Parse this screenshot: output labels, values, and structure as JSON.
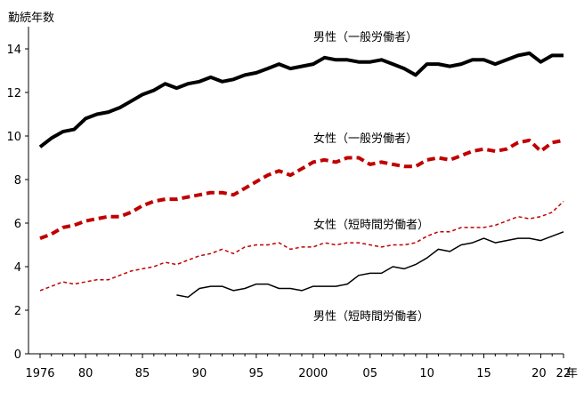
{
  "chart_data": {
    "type": "line",
    "ylabel": "勤続年数",
    "xunit": "年",
    "ylim": [
      0,
      15
    ],
    "yticks": [
      0,
      2,
      4,
      6,
      8,
      10,
      12,
      14
    ],
    "xlim": [
      1976,
      2022
    ],
    "xticks": [
      {
        "value": 1976,
        "label": "1976"
      },
      {
        "value": 1980,
        "label": "80"
      },
      {
        "value": 1985,
        "label": "85"
      },
      {
        "value": 1990,
        "label": "90"
      },
      {
        "value": 1995,
        "label": "95"
      },
      {
        "value": 2000,
        "label": "2000"
      },
      {
        "value": 2005,
        "label": "05"
      },
      {
        "value": 2010,
        "label": "10"
      },
      {
        "value": 2015,
        "label": "15"
      },
      {
        "value": 2020,
        "label": "20"
      },
      {
        "value": 2022,
        "label": "22"
      }
    ],
    "grid": false,
    "series": [
      {
        "name": "男性（一般労働者）",
        "style": "solid-thick",
        "color": "#000000",
        "x": [
          1976,
          1977,
          1978,
          1979,
          1980,
          1981,
          1982,
          1983,
          1984,
          1985,
          1986,
          1987,
          1988,
          1989,
          1990,
          1991,
          1992,
          1993,
          1994,
          1995,
          1996,
          1997,
          1998,
          1999,
          2000,
          2001,
          2002,
          2003,
          2004,
          2005,
          2006,
          2007,
          2008,
          2009,
          2010,
          2011,
          2012,
          2013,
          2014,
          2015,
          2016,
          2017,
          2018,
          2019,
          2020,
          2021,
          2022
        ],
        "values": [
          9.5,
          9.9,
          10.2,
          10.3,
          10.8,
          11.0,
          11.1,
          11.3,
          11.6,
          11.9,
          12.1,
          12.4,
          12.2,
          12.4,
          12.5,
          12.7,
          12.5,
          12.6,
          12.8,
          12.9,
          13.1,
          13.3,
          13.1,
          13.2,
          13.3,
          13.6,
          13.5,
          13.5,
          13.4,
          13.4,
          13.5,
          13.3,
          13.1,
          12.8,
          13.3,
          13.3,
          13.2,
          13.3,
          13.5,
          13.5,
          13.3,
          13.5,
          13.7,
          13.8,
          13.4,
          13.7,
          13.7
        ]
      },
      {
        "name": "女性（一般労働者）",
        "style": "dashed-thick",
        "color": "#c00000",
        "x": [
          1976,
          1977,
          1978,
          1979,
          1980,
          1981,
          1982,
          1983,
          1984,
          1985,
          1986,
          1987,
          1988,
          1989,
          1990,
          1991,
          1992,
          1993,
          1994,
          1995,
          1996,
          1997,
          1998,
          1999,
          2000,
          2001,
          2002,
          2003,
          2004,
          2005,
          2006,
          2007,
          2008,
          2009,
          2010,
          2011,
          2012,
          2013,
          2014,
          2015,
          2016,
          2017,
          2018,
          2019,
          2020,
          2021,
          2022
        ],
        "values": [
          5.3,
          5.5,
          5.8,
          5.9,
          6.1,
          6.2,
          6.3,
          6.3,
          6.5,
          6.8,
          7.0,
          7.1,
          7.1,
          7.2,
          7.3,
          7.4,
          7.4,
          7.3,
          7.6,
          7.9,
          8.2,
          8.4,
          8.2,
          8.5,
          8.8,
          8.9,
          8.8,
          9.0,
          9.0,
          8.7,
          8.8,
          8.7,
          8.6,
          8.6,
          8.9,
          9.0,
          8.9,
          9.1,
          9.3,
          9.4,
          9.3,
          9.4,
          9.7,
          9.8,
          9.3,
          9.7,
          9.8
        ]
      },
      {
        "name": "女性（短時間労働者）",
        "style": "dashed-thin",
        "color": "#c00000",
        "x": [
          1976,
          1977,
          1978,
          1979,
          1980,
          1981,
          1982,
          1983,
          1984,
          1985,
          1986,
          1987,
          1988,
          1989,
          1990,
          1991,
          1992,
          1993,
          1994,
          1995,
          1996,
          1997,
          1998,
          1999,
          2000,
          2001,
          2002,
          2003,
          2004,
          2005,
          2006,
          2007,
          2008,
          2009,
          2010,
          2011,
          2012,
          2013,
          2014,
          2015,
          2016,
          2017,
          2018,
          2019,
          2020,
          2021,
          2022
        ],
        "values": [
          2.9,
          3.1,
          3.3,
          3.2,
          3.3,
          3.4,
          3.4,
          3.6,
          3.8,
          3.9,
          4.0,
          4.2,
          4.1,
          4.3,
          4.5,
          4.6,
          4.8,
          4.6,
          4.9,
          5.0,
          5.0,
          5.1,
          4.8,
          4.9,
          4.9,
          5.1,
          5.0,
          5.1,
          5.1,
          5.0,
          4.9,
          5.0,
          5.0,
          5.1,
          5.4,
          5.6,
          5.6,
          5.8,
          5.8,
          5.8,
          5.9,
          6.1,
          6.3,
          6.2,
          6.3,
          6.5,
          7.0
        ]
      },
      {
        "name": "男性（短時間労働者）",
        "style": "solid-thin",
        "color": "#000000",
        "x": [
          1988,
          1989,
          1990,
          1991,
          1992,
          1993,
          1994,
          1995,
          1996,
          1997,
          1998,
          1999,
          2000,
          2001,
          2002,
          2003,
          2004,
          2005,
          2006,
          2007,
          2008,
          2009,
          2010,
          2011,
          2012,
          2013,
          2014,
          2015,
          2016,
          2017,
          2018,
          2019,
          2020,
          2021,
          2022
        ],
        "values": [
          2.7,
          2.6,
          3.0,
          3.1,
          3.1,
          2.9,
          3.0,
          3.2,
          3.2,
          3.0,
          3.0,
          2.9,
          3.1,
          3.1,
          3.1,
          3.2,
          3.6,
          3.7,
          3.7,
          4.0,
          3.9,
          4.1,
          4.4,
          4.8,
          4.7,
          5.0,
          5.1,
          5.3,
          5.1,
          5.2,
          5.3,
          5.3,
          5.2,
          5.4,
          5.6
        ]
      }
    ]
  }
}
